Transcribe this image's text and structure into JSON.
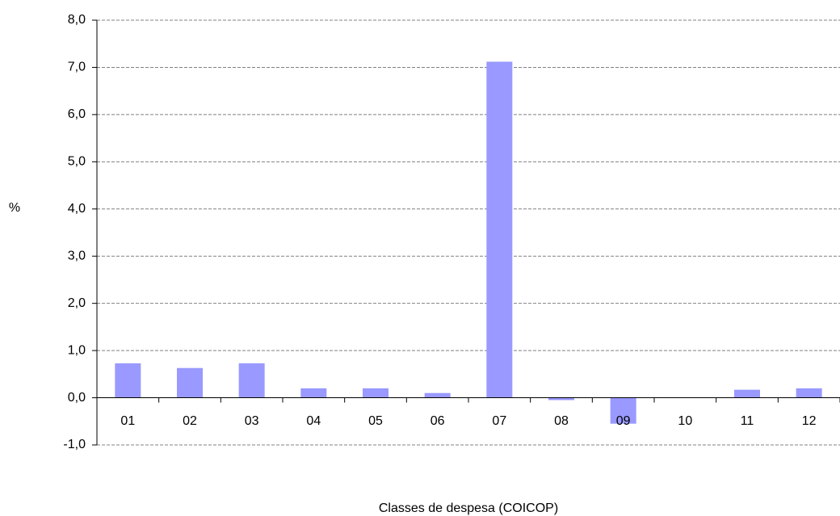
{
  "chart_data": {
    "type": "bar",
    "y_label": "%",
    "x_label": "Classes de despesa (COICOP)",
    "categories": [
      "01",
      "02",
      "03",
      "04",
      "05",
      "06",
      "07",
      "08",
      "09",
      "10",
      "11",
      "12"
    ],
    "values": [
      0.73,
      0.63,
      0.73,
      0.2,
      0.2,
      0.1,
      7.12,
      -0.05,
      -0.55,
      0,
      0.17,
      0.2
    ],
    "color": "#9999ff",
    "ylim": [
      -1,
      8
    ],
    "yticks": [
      {
        "value": -1,
        "label": "-1,0"
      },
      {
        "value": 0,
        "label": "0,0"
      },
      {
        "value": 1,
        "label": "1,0"
      },
      {
        "value": 2,
        "label": "2,0"
      },
      {
        "value": 3,
        "label": "3,0"
      },
      {
        "value": 4,
        "label": "4,0"
      },
      {
        "value": 5,
        "label": "5,0"
      },
      {
        "value": 6,
        "label": "6,0"
      },
      {
        "value": 7,
        "label": "7,0"
      },
      {
        "value": 8,
        "label": "8,0"
      }
    ],
    "grid": true
  }
}
